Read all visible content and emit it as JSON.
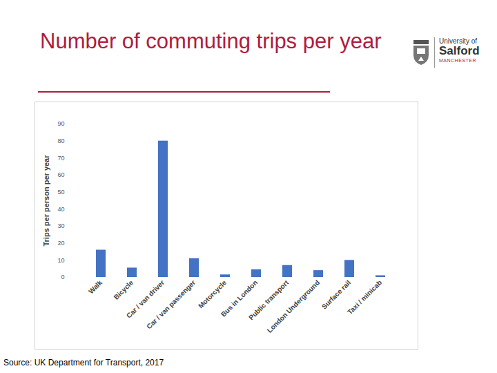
{
  "chart_data": {
    "type": "bar",
    "title": "Number of commuting trips per year",
    "y_label": "Trips per person per year",
    "categories": [
      "Walk",
      "Bicycle",
      "Car / van driver",
      "Car / van passenger",
      "Motorcycle",
      "Bus in London",
      "Public transport",
      "London Underground",
      "Surface rail",
      "Taxi / minicab"
    ],
    "values": [
      16,
      5.5,
      80,
      11,
      1.5,
      4.5,
      7,
      4,
      10,
      1
    ],
    "color": "#4472c4",
    "ylim": [
      0,
      90
    ],
    "yticks": [
      0,
      10,
      20,
      30,
      40,
      50,
      60,
      70,
      80,
      90
    ],
    "grid": false,
    "source": "Source: UK Department for Transport, 2017"
  },
  "logo": {
    "line1": "University of",
    "line2": "Salford",
    "line3": "MANCHESTER"
  }
}
